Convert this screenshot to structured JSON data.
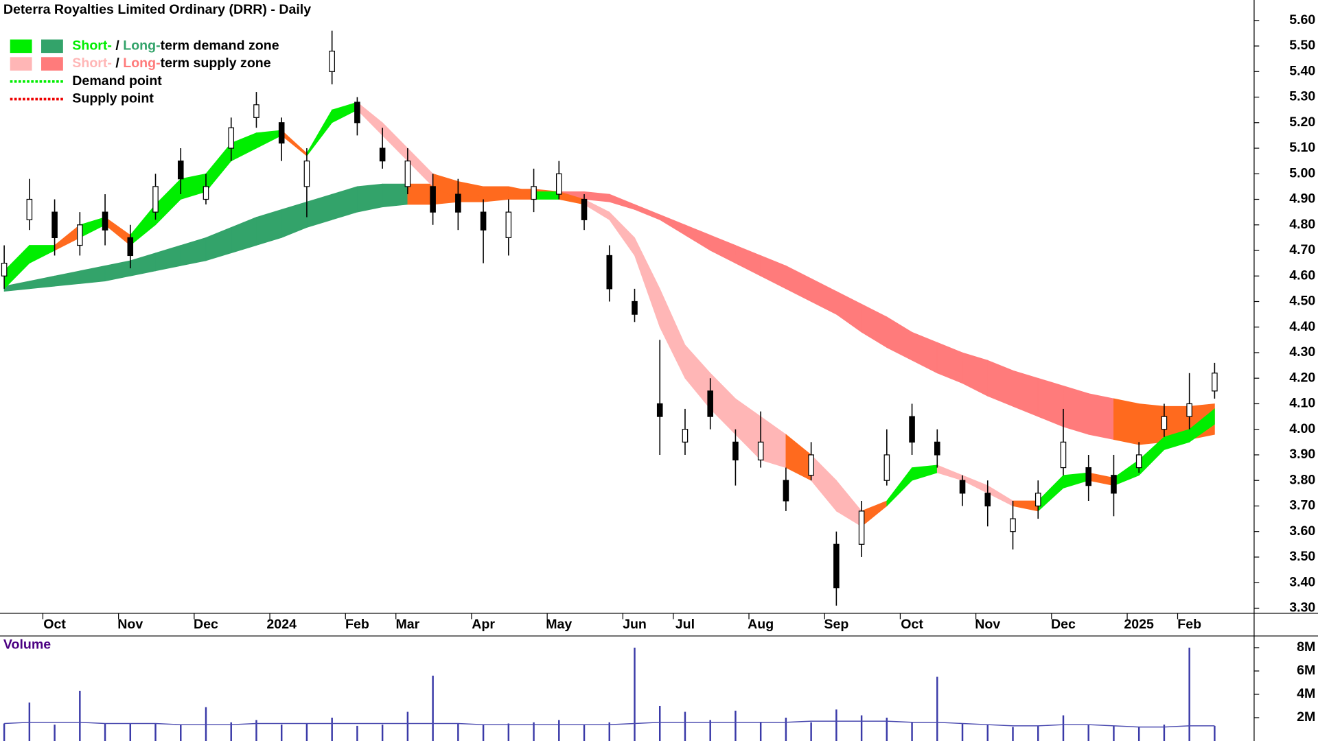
{
  "chart_data": [
    {
      "type": "candlestick",
      "title": "Deterra Royalties Limited Ordinary (DRR) - Daily",
      "categories": [
        null,
        null,
        "Oct",
        null,
        null,
        "Nov",
        null,
        null,
        "Dec",
        null,
        null,
        "2024",
        null,
        null,
        "Feb",
        null,
        "Mar",
        null,
        null,
        "Apr",
        null,
        null,
        "May",
        null,
        null,
        "Jun",
        null,
        "Jul",
        null,
        null,
        "Aug",
        null,
        null,
        "Sep",
        null,
        null,
        "Oct",
        null,
        null,
        "Nov",
        null,
        null,
        "Dec",
        null,
        null,
        "2025",
        null,
        "Feb",
        null
      ],
      "open": [
        4.6,
        4.82,
        4.85,
        4.72,
        4.85,
        4.75,
        4.85,
        5.05,
        4.9,
        5.1,
        5.22,
        5.2,
        4.95,
        5.4,
        5.28,
        5.1,
        4.95,
        4.95,
        4.92,
        4.85,
        4.75,
        4.9,
        4.92,
        4.9,
        4.68,
        4.5,
        4.1,
        3.95,
        4.15,
        3.95,
        3.88,
        3.8,
        3.82,
        3.55,
        3.55,
        3.8,
        4.05,
        3.95,
        3.8,
        3.75,
        3.6,
        3.7,
        3.85,
        3.85,
        3.82,
        3.85,
        4.0,
        4.05,
        4.15
      ],
      "high": [
        4.72,
        4.98,
        4.9,
        4.85,
        4.92,
        4.8,
        5.0,
        5.1,
        5.0,
        5.22,
        5.32,
        5.22,
        5.1,
        5.56,
        5.3,
        5.18,
        5.1,
        5.0,
        4.98,
        4.9,
        4.9,
        5.02,
        5.05,
        4.92,
        4.72,
        4.55,
        4.35,
        4.08,
        4.2,
        4.0,
        4.07,
        3.85,
        3.95,
        3.6,
        3.72,
        4.0,
        4.1,
        4.0,
        3.82,
        3.8,
        3.72,
        3.8,
        4.08,
        3.9,
        3.9,
        3.95,
        4.1,
        4.22,
        4.26
      ],
      "low": [
        4.55,
        4.78,
        4.68,
        4.68,
        4.72,
        4.63,
        4.82,
        4.92,
        4.88,
        5.05,
        5.18,
        5.05,
        4.83,
        5.35,
        5.15,
        5.02,
        4.92,
        4.8,
        4.78,
        4.65,
        4.68,
        4.85,
        4.9,
        4.78,
        4.5,
        4.42,
        3.9,
        3.9,
        4.0,
        3.78,
        3.85,
        3.68,
        3.8,
        3.31,
        3.5,
        3.78,
        3.9,
        3.85,
        3.7,
        3.62,
        3.53,
        3.65,
        3.82,
        3.72,
        3.66,
        3.83,
        3.97,
        4.0,
        4.12
      ],
      "close": [
        4.65,
        4.9,
        4.75,
        4.8,
        4.78,
        4.68,
        4.95,
        4.98,
        4.95,
        5.18,
        5.27,
        5.12,
        5.05,
        5.48,
        5.2,
        5.05,
        5.05,
        4.85,
        4.85,
        4.78,
        4.85,
        4.95,
        5.0,
        4.82,
        4.55,
        4.45,
        4.05,
        4.0,
        4.05,
        3.88,
        3.95,
        3.72,
        3.9,
        3.38,
        3.68,
        3.9,
        3.95,
        3.9,
        3.75,
        3.7,
        3.65,
        3.75,
        3.95,
        3.78,
        3.75,
        3.9,
        4.05,
        4.1,
        4.22
      ],
      "up_color": "#ffffff",
      "down_color": "#000000",
      "outline_color": "#000000",
      "bands": [
        {
          "upper": [
            4.56,
            4.58,
            4.6,
            4.62,
            4.64,
            4.66,
            4.69,
            4.72,
            4.75,
            4.79,
            4.83,
            4.86,
            4.89,
            4.92,
            4.95,
            4.96,
            4.96,
            4.96,
            4.95,
            4.95,
            4.94,
            4.94,
            4.93,
            4.93,
            4.92,
            4.88,
            4.84,
            4.8,
            4.76,
            4.72,
            4.68,
            4.64,
            4.59,
            4.54,
            4.49,
            4.44,
            4.38,
            4.34,
            4.3,
            4.27,
            4.23,
            4.2,
            4.17,
            4.14,
            4.12,
            4.1,
            4.09,
            4.09,
            4.1
          ],
          "lower": [
            4.54,
            4.55,
            4.56,
            4.57,
            4.58,
            4.6,
            4.62,
            4.64,
            4.66,
            4.69,
            4.72,
            4.75,
            4.79,
            4.82,
            4.85,
            4.87,
            4.88,
            4.88,
            4.89,
            4.89,
            4.9,
            4.9,
            4.91,
            4.9,
            4.89,
            4.86,
            4.82,
            4.76,
            4.7,
            4.65,
            4.6,
            4.55,
            4.5,
            4.45,
            4.38,
            4.32,
            4.27,
            4.22,
            4.18,
            4.13,
            4.09,
            4.05,
            4.01,
            3.98,
            3.96,
            3.94,
            3.95,
            3.96,
            3.98
          ],
          "colors": [
            "#33a36a",
            "#33a36a",
            "#33a36a",
            "#33a36a",
            "#33a36a",
            "#33a36a",
            "#33a36a",
            "#33a36a",
            "#33a36a",
            "#33a36a",
            "#33a36a",
            "#33a36a",
            "#33a36a",
            "#33a36a",
            "#33a36a",
            "#33a36a",
            "#ff6a1e",
            "#ff6a1e",
            "#ff6a1e",
            "#ff6a1e",
            "#ff6a1e",
            "#ff6a1e",
            "#ff7b7b",
            "#ff7b7b",
            "#ff7b7b",
            "#ff7b7b",
            "#ff7b7b",
            "#ff7b7b",
            "#ff7b7b",
            "#ff7b7b",
            "#ff7b7b",
            "#ff7b7b",
            "#ff7b7b",
            "#ff7b7b",
            "#ff7b7b",
            "#ff7b7b",
            "#ff7b7b",
            "#ff7b7b",
            "#ff7b7b",
            "#ff7b7b",
            "#ff7b7b",
            "#ff7b7b",
            "#ff7b7b",
            "#ff7b7b",
            "#ff6a1e",
            "#ff6a1e",
            "#ff6a1e",
            "#ff6a1e"
          ]
        },
        {
          "upper": [
            4.62,
            4.72,
            4.72,
            4.8,
            4.83,
            4.76,
            4.88,
            4.98,
            5.0,
            5.12,
            5.16,
            5.17,
            5.08,
            5.25,
            5.28,
            5.2,
            5.1,
            5.0,
            4.97,
            4.95,
            4.95,
            4.93,
            4.93,
            4.9,
            4.85,
            4.75,
            4.55,
            4.33,
            4.22,
            4.12,
            4.05,
            3.98,
            3.9,
            3.8,
            3.68,
            3.72,
            3.85,
            3.86,
            3.82,
            3.78,
            3.72,
            3.72,
            3.82,
            3.83,
            3.81,
            3.88,
            3.97,
            4.0,
            4.08
          ],
          "lower": [
            4.55,
            4.65,
            4.7,
            4.75,
            4.8,
            4.72,
            4.8,
            4.9,
            4.93,
            5.05,
            5.1,
            5.15,
            5.07,
            5.2,
            5.25,
            5.15,
            5.05,
            4.95,
            4.9,
            4.92,
            4.92,
            4.9,
            4.9,
            4.88,
            4.82,
            4.68,
            4.4,
            4.2,
            4.08,
            3.98,
            3.88,
            3.85,
            3.8,
            3.68,
            3.62,
            3.7,
            3.8,
            3.83,
            3.8,
            3.75,
            3.7,
            3.68,
            3.77,
            3.8,
            3.78,
            3.82,
            3.92,
            3.95,
            4.02
          ],
          "colors": [
            "#00ee00",
            "#00ee00",
            "#ff6a1e",
            "#00ee00",
            "#ff6a1e",
            "#00ee00",
            "#00ee00",
            "#00ee00",
            "#00ee00",
            "#00ee00",
            "#00ee00",
            "#ff6a1e",
            "#00ee00",
            "#00ee00",
            "#ffb6b6",
            "#ffb6b6",
            "#ffb6b6",
            "#ff6a1e",
            "#ff6a1e",
            "#ff6a1e",
            "#ff6a1e",
            "#00ee00",
            "#ff6a1e",
            "#ffb6b6",
            "#ffb6b6",
            "#ffb6b6",
            "#ffb6b6",
            "#ffb6b6",
            "#ffb6b6",
            "#ffb6b6",
            "#ffb6b6",
            "#ff6a1e",
            "#ffb6b6",
            "#ffb6b6",
            "#ff6a1e",
            "#00ee00",
            "#00ee00",
            "#ffb6b6",
            "#ffb6b6",
            "#ffb6b6",
            "#ff6a1e",
            "#00ee00",
            "#00ee00",
            "#ff6a1e",
            "#00ee00",
            "#00ee00",
            "#00ee00",
            "#00ee00"
          ]
        }
      ],
      "legend": [
        {
          "parts": [
            "Short-",
            " / ",
            "Long-",
            "term demand zone"
          ],
          "colors": [
            "#00ee00",
            "#000000",
            "#33a36a",
            "#000000"
          ],
          "swatches": [
            "#00ee00",
            "#33a36a"
          ]
        },
        {
          "parts": [
            "Short-",
            " / ",
            "Long-",
            "term supply zone"
          ],
          "colors": [
            "#ffb6b6",
            "#000000",
            "#ff7b7b",
            "#000000"
          ],
          "swatches": [
            "#ffb6b6",
            "#ff7b7b"
          ]
        },
        {
          "parts": [
            "Demand point"
          ],
          "colors": [
            "#000000"
          ],
          "dotted": "#00ee00"
        },
        {
          "parts": [
            "Supply point"
          ],
          "colors": [
            "#000000"
          ],
          "dotted": "#ee0000"
        }
      ],
      "ylim": [
        3.28,
        5.68
      ],
      "yticks": [
        {
          "value": 3.3,
          "label": "3.30"
        },
        {
          "value": 3.4,
          "label": "3.40"
        },
        {
          "value": 3.5,
          "label": "3.50"
        },
        {
          "value": 3.6,
          "label": "3.60"
        },
        {
          "value": 3.7,
          "label": "3.70"
        },
        {
          "value": 3.8,
          "label": "3.80"
        },
        {
          "value": 3.9,
          "label": "3.90"
        },
        {
          "value": 4.0,
          "label": "4.00"
        },
        {
          "value": 4.1,
          "label": "4.10"
        },
        {
          "value": 4.2,
          "label": "4.20"
        },
        {
          "value": 4.3,
          "label": "4.30"
        },
        {
          "value": 4.4,
          "label": "4.40"
        },
        {
          "value": 4.5,
          "label": "4.50"
        },
        {
          "value": 4.6,
          "label": "4.60"
        },
        {
          "value": 4.7,
          "label": "4.70"
        },
        {
          "value": 4.8,
          "label": "4.80"
        },
        {
          "value": 4.9,
          "label": "4.90"
        },
        {
          "value": 5.0,
          "label": "5.00"
        },
        {
          "value": 5.1,
          "label": "5.10"
        },
        {
          "value": 5.2,
          "label": "5.20"
        },
        {
          "value": 5.3,
          "label": "5.30"
        },
        {
          "value": 5.4,
          "label": "5.40"
        },
        {
          "value": 5.5,
          "label": "5.50"
        },
        {
          "value": 5.6,
          "label": "5.60"
        }
      ]
    },
    {
      "type": "bar",
      "title": "Volume",
      "title_color": "#4b0082",
      "values": [
        1.5,
        3.3,
        1.4,
        4.3,
        1.5,
        1.5,
        1.5,
        1.4,
        2.9,
        1.6,
        1.8,
        1.4,
        1.5,
        2.0,
        1.3,
        1.4,
        2.5,
        5.6,
        1.5,
        1.4,
        1.5,
        1.6,
        1.8,
        1.4,
        1.6,
        8.0,
        3.0,
        2.5,
        1.8,
        2.6,
        1.6,
        2.0,
        1.6,
        2.7,
        2.2,
        2.0,
        1.6,
        5.5,
        1.5,
        1.4,
        1.2,
        1.3,
        2.2,
        1.4,
        1.3,
        1.2,
        1.4,
        8.0,
        1.3
      ],
      "color": "#3a3aa8",
      "average": [
        1.5,
        1.6,
        1.6,
        1.6,
        1.5,
        1.5,
        1.5,
        1.4,
        1.4,
        1.4,
        1.5,
        1.5,
        1.5,
        1.5,
        1.5,
        1.5,
        1.5,
        1.5,
        1.5,
        1.4,
        1.4,
        1.4,
        1.4,
        1.4,
        1.4,
        1.5,
        1.6,
        1.6,
        1.6,
        1.6,
        1.6,
        1.6,
        1.7,
        1.7,
        1.7,
        1.7,
        1.6,
        1.6,
        1.5,
        1.4,
        1.3,
        1.3,
        1.4,
        1.4,
        1.3,
        1.2,
        1.2,
        1.3,
        1.3
      ],
      "average_color": "#4b4bb0",
      "ylim": [
        0,
        9
      ],
      "yticks": [
        {
          "value": 2,
          "label": "2M"
        },
        {
          "value": 4,
          "label": "4M"
        },
        {
          "value": 6,
          "label": "6M"
        },
        {
          "value": 8,
          "label": "8M"
        }
      ]
    }
  ]
}
